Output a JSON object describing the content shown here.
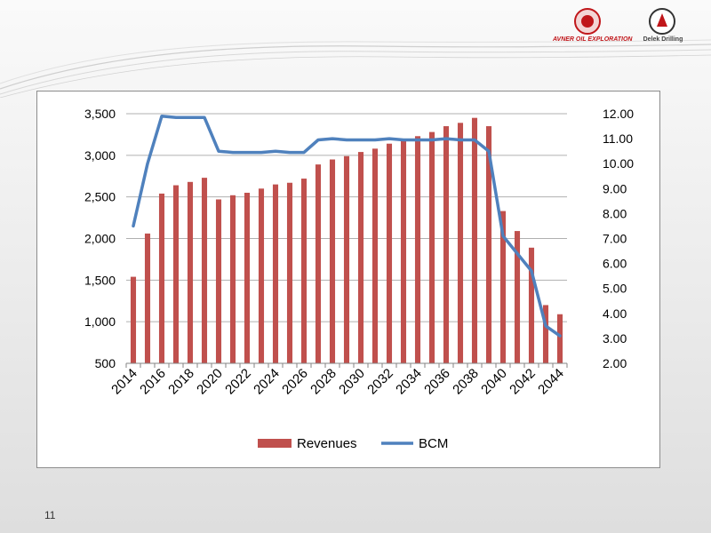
{
  "logos": {
    "left": {
      "text": "AVNER OIL EXPLORATION"
    },
    "right": {
      "text": "Delek Drilling"
    }
  },
  "page_number": "11",
  "chart_data": {
    "type": "bar",
    "title": "",
    "xlabel": "",
    "ylabel": "",
    "x": [
      2014,
      2015,
      2016,
      2017,
      2018,
      2019,
      2020,
      2021,
      2022,
      2023,
      2024,
      2025,
      2026,
      2027,
      2028,
      2029,
      2030,
      2031,
      2032,
      2033,
      2034,
      2035,
      2036,
      2037,
      2038,
      2039,
      2040,
      2041,
      2042,
      2043,
      2044
    ],
    "x_tick_labels": [
      "2014",
      "2016",
      "2018",
      "2020",
      "2022",
      "2024",
      "2026",
      "2028",
      "2030",
      "2032",
      "2034",
      "2036",
      "2038",
      "2040",
      "2042",
      "2044"
    ],
    "y_left": {
      "min": 500,
      "max": 3500,
      "ticks": [
        "500",
        "1,000",
        "1,500",
        "2,000",
        "2,500",
        "3,000",
        "3,500"
      ]
    },
    "y_right": {
      "min": 2,
      "max": 12,
      "ticks": [
        "2.00",
        "3.00",
        "4.00",
        "5.00",
        "6.00",
        "7.00",
        "8.00",
        "9.00",
        "10.00",
        "11.00",
        "12.00"
      ]
    },
    "grid": true,
    "legend_position": "bottom",
    "series": [
      {
        "name": "Revenues",
        "type": "bar",
        "axis": "left",
        "color": "#c0504d",
        "values": [
          1540,
          2060,
          2540,
          2640,
          2680,
          2730,
          2470,
          2520,
          2550,
          2600,
          2650,
          2670,
          2720,
          2890,
          2950,
          2990,
          3040,
          3080,
          3140,
          3180,
          3230,
          3280,
          3350,
          3390,
          3450,
          3350,
          2330,
          2090,
          1890,
          1200,
          1090
        ]
      },
      {
        "name": "BCM",
        "type": "line",
        "axis": "right",
        "color": "#4f81bd",
        "values": [
          7.5,
          10.0,
          11.9,
          11.85,
          11.85,
          11.85,
          10.5,
          10.45,
          10.45,
          10.45,
          10.5,
          10.45,
          10.45,
          10.95,
          11.0,
          10.95,
          10.95,
          10.95,
          11.0,
          10.95,
          10.95,
          10.95,
          11.0,
          10.95,
          10.95,
          10.5,
          7.1,
          6.4,
          5.7,
          3.5,
          3.1
        ]
      }
    ]
  }
}
